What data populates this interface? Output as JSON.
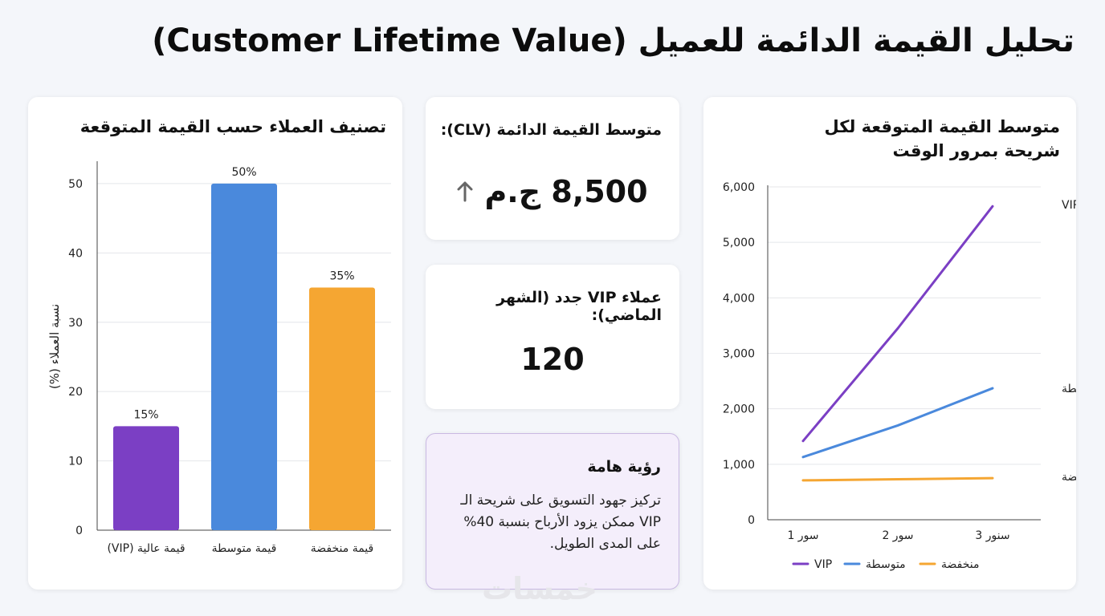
{
  "page_title": "تحليل القيمة الدائمة للعميل (Customer Lifetime Value)",
  "kpi_clv": {
    "label": "متوسط القيمة الدائمة (CLV):",
    "value": "8,500 ج.م",
    "trend_icon": "arrow-up-icon"
  },
  "kpi_vip": {
    "label": "عملاء VIP جدد (الشهر الماضي):",
    "value": "120"
  },
  "insight": {
    "title": "رؤية هامة",
    "text": "تركيز جهود التسويق على شريحة الـ VIP ممكن يزود الأرباح بنسبة 40% على المدى الطويل."
  },
  "watermark": "خمسات",
  "colors": {
    "vip": "#7b3fc4",
    "medium": "#4a89dc",
    "low": "#f5a632",
    "grid": "#e4e6ea"
  },
  "chart_data": [
    {
      "type": "bar",
      "title": "تصنيف العملاء حسب القيمة المتوقعة",
      "categories": [
        "قيمة عالية (VIP)",
        "قيمة متوسطة",
        "قيمة منخفضة"
      ],
      "values": [
        15,
        50,
        35
      ],
      "data_labels": [
        "15%",
        "50%",
        "35%"
      ],
      "ylabel": "نسبة العملاء (%)",
      "ylim": [
        0,
        53
      ],
      "yticks": [
        0,
        10,
        20,
        30,
        40,
        50
      ],
      "grid": true
    },
    {
      "type": "line",
      "title": "متوسط القيمة المتوقعة لكل شريحة بمرور الوقت",
      "x": [
        "سور 1",
        "سور 2",
        "سنور 3"
      ],
      "ylim": [
        0,
        6000
      ],
      "yticks": [
        "0",
        "1,000",
        "2,000",
        "3,000",
        "4,000",
        "5,000",
        "6,000"
      ],
      "ytick_values": [
        0,
        1000,
        2000,
        3000,
        4000,
        5000,
        6000
      ],
      "grid": true,
      "legend": "bottom",
      "series": [
        {
          "name": "VIP",
          "values": [
            1420,
            3450,
            5650
          ]
        },
        {
          "name": "متوسطة",
          "values": [
            1130,
            1700,
            2370
          ]
        },
        {
          "name": "منخفضة",
          "values": [
            710,
            730,
            750
          ]
        }
      ]
    }
  ]
}
